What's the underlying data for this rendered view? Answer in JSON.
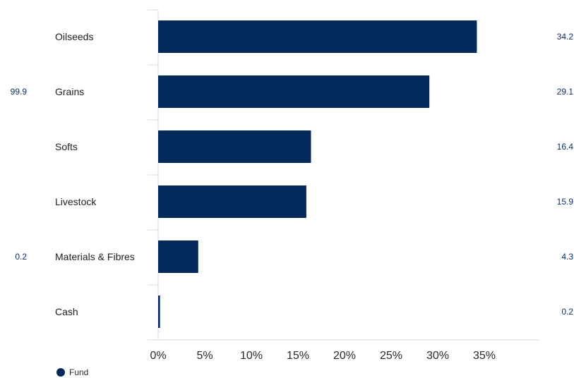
{
  "colors": {
    "fund": "#042a5c",
    "axis": "#d6dbe4",
    "value_text": "#0d2d5e"
  },
  "side_labels": [
    {
      "text": "99.9",
      "category": "Grains"
    },
    {
      "text": "0.2",
      "category": "Materials & Fibres"
    }
  ],
  "legend": {
    "label": "Fund"
  },
  "chart_data": {
    "type": "bar",
    "orientation": "horizontal",
    "categories": [
      "Oilseeds",
      "Grains",
      "Softs",
      "Livestock",
      "Materials & Fibres",
      "Cash"
    ],
    "series": [
      {
        "name": "Fund",
        "values": [
          34.2,
          29.1,
          16.4,
          15.9,
          4.3,
          0.2
        ],
        "color": "#042a5c"
      }
    ],
    "value_labels": [
      "34.2",
      "29.1",
      "16.4",
      "15.9",
      "4.3",
      "0.2"
    ],
    "xticks": [
      "0%",
      "5%",
      "10%",
      "15%",
      "20%",
      "25%",
      "30%",
      "35%"
    ],
    "xlim": [
      0,
      40
    ],
    "grid": false,
    "legend_position": "bottom-left"
  }
}
